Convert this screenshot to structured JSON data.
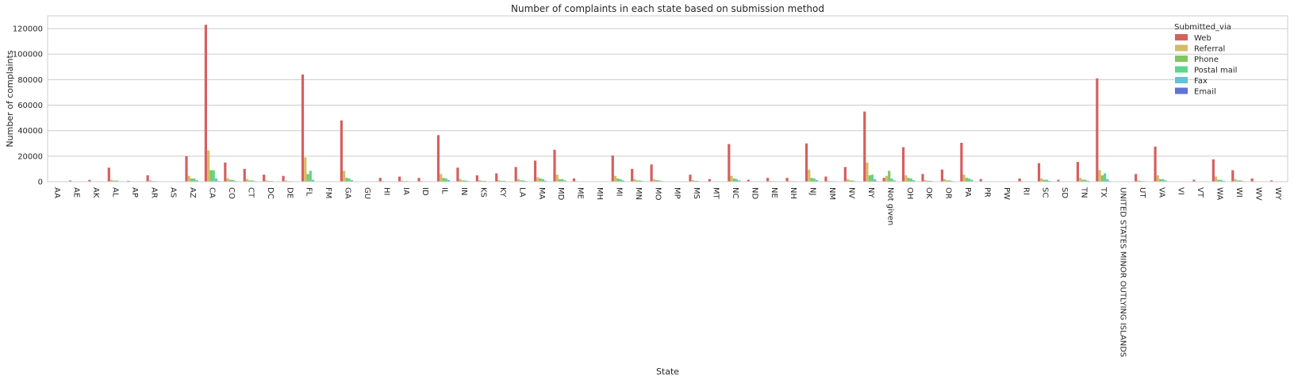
{
  "chart_data": {
    "type": "bar",
    "title": "Number of complaints in each state based on submission method",
    "xlabel": "State",
    "ylabel": "Number of complaints",
    "ylim": [
      0,
      130000
    ],
    "yticks": [
      0,
      20000,
      40000,
      60000,
      80000,
      100000,
      120000
    ],
    "grid": true,
    "legend_title": "Submitted_via",
    "legend_position": "top-right",
    "categories": [
      "AA",
      "AE",
      "AK",
      "AL",
      "AP",
      "AR",
      "AS",
      "AZ",
      "CA",
      "CO",
      "CT",
      "DC",
      "DE",
      "FL",
      "FM",
      "GA",
      "GU",
      "HI",
      "IA",
      "ID",
      "IL",
      "IN",
      "KS",
      "KY",
      "LA",
      "MA",
      "MD",
      "ME",
      "MH",
      "MI",
      "MN",
      "MO",
      "MP",
      "MS",
      "MT",
      "NC",
      "ND",
      "NE",
      "NH",
      "NJ",
      "NM",
      "NV",
      "NY",
      "Not given",
      "OH",
      "OK",
      "OR",
      "PA",
      "PR",
      "PW",
      "RI",
      "SC",
      "SD",
      "TN",
      "TX",
      "UNITED STATES MINOR OUTLYING ISLANDS",
      "UT",
      "VA",
      "VI",
      "VT",
      "WA",
      "WI",
      "WV",
      "WY"
    ],
    "series": [
      {
        "name": "Web",
        "color": "#d65f5f",
        "values": [
          50,
          900,
          1400,
          11000,
          700,
          5000,
          50,
          20000,
          123000,
          15000,
          10000,
          5500,
          4500,
          84000,
          50,
          48000,
          80,
          3000,
          4000,
          3000,
          36500,
          11000,
          5000,
          6500,
          11500,
          16500,
          25000,
          2500,
          50,
          20500,
          10000,
          13500,
          50,
          5500,
          2000,
          29500,
          1500,
          3000,
          3000,
          30000,
          4000,
          11500,
          55000,
          3000,
          27000,
          6000,
          9500,
          30500,
          2000,
          80,
          2500,
          14500,
          1500,
          15500,
          81000,
          50,
          6000,
          27500,
          50,
          1500,
          17500,
          9000,
          2500,
          1000
        ]
      },
      {
        "name": "Referral",
        "color": "#d5bb67",
        "values": [
          0,
          100,
          150,
          1500,
          50,
          1000,
          0,
          4500,
          24500,
          2500,
          2000,
          1000,
          900,
          19000,
          0,
          8500,
          10,
          500,
          800,
          500,
          6000,
          2000,
          1200,
          1200,
          2000,
          3500,
          5500,
          500,
          0,
          4500,
          2000,
          2000,
          10,
          1200,
          300,
          4500,
          300,
          600,
          600,
          9500,
          700,
          2000,
          15000,
          4500,
          5000,
          1200,
          2000,
          5500,
          300,
          10,
          500,
          2500,
          300,
          3000,
          9000,
          0,
          1000,
          5000,
          10,
          300,
          4000,
          2000,
          500,
          200
        ]
      },
      {
        "name": "Phone",
        "color": "#82c65f",
        "values": [
          0,
          50,
          100,
          800,
          30,
          500,
          0,
          2500,
          9000,
          1500,
          1000,
          600,
          500,
          6000,
          0,
          3000,
          10,
          300,
          500,
          300,
          3000,
          1000,
          600,
          700,
          1000,
          2500,
          2000,
          300,
          0,
          2500,
          1000,
          1200,
          10,
          700,
          200,
          2500,
          200,
          400,
          400,
          3000,
          400,
          1000,
          5000,
          8500,
          3000,
          700,
          1000,
          3000,
          200,
          10,
          300,
          1500,
          200,
          1500,
          5000,
          0,
          600,
          2000,
          10,
          200,
          1500,
          1000,
          300,
          100
        ]
      },
      {
        "name": "Postal mail",
        "color": "#5ed68a",
        "values": [
          0,
          30,
          100,
          900,
          20,
          500,
          0,
          2500,
          9000,
          1200,
          1000,
          600,
          400,
          8500,
          0,
          2500,
          10,
          300,
          500,
          300,
          2500,
          1000,
          600,
          700,
          1000,
          2000,
          2000,
          300,
          0,
          2000,
          1000,
          1000,
          10,
          600,
          200,
          2000,
          200,
          400,
          400,
          2500,
          400,
          900,
          5500,
          2500,
          2500,
          700,
          1000,
          2500,
          200,
          10,
          300,
          1500,
          200,
          1500,
          6500,
          0,
          500,
          2000,
          10,
          200,
          1500,
          1000,
          300,
          100
        ]
      },
      {
        "name": "Fax",
        "color": "#5ec4d6",
        "values": [
          0,
          20,
          50,
          400,
          10,
          300,
          0,
          1200,
          2500,
          600,
          500,
          300,
          200,
          1500,
          0,
          1200,
          5,
          150,
          250,
          150,
          1300,
          500,
          300,
          350,
          500,
          800,
          1000,
          150,
          0,
          1000,
          500,
          500,
          5,
          300,
          100,
          1000,
          100,
          200,
          200,
          1300,
          200,
          400,
          2000,
          1000,
          1200,
          350,
          500,
          1500,
          100,
          5,
          150,
          700,
          100,
          700,
          2000,
          0,
          300,
          1000,
          5,
          100,
          700,
          500,
          150,
          50
        ]
      },
      {
        "name": "Email",
        "color": "#5f72d6",
        "values": [
          0,
          5,
          10,
          80,
          5,
          50,
          0,
          200,
          500,
          100,
          80,
          50,
          40,
          300,
          0,
          200,
          2,
          30,
          40,
          30,
          250,
          100,
          50,
          60,
          100,
          150,
          200,
          30,
          0,
          200,
          100,
          100,
          2,
          60,
          20,
          200,
          20,
          40,
          40,
          250,
          40,
          80,
          400,
          200,
          250,
          60,
          100,
          300,
          20,
          2,
          30,
          150,
          20,
          150,
          400,
          0,
          60,
          200,
          2,
          20,
          150,
          100,
          30,
          10
        ]
      }
    ]
  }
}
